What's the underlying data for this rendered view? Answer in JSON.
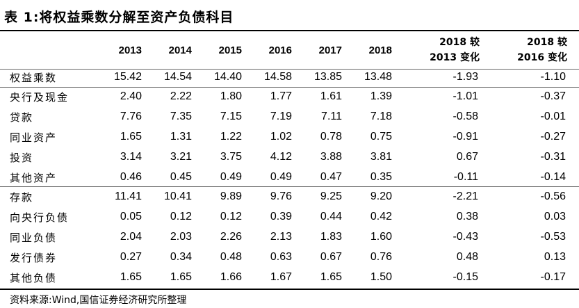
{
  "title": "表 1:将权益乘数分解至资产负债科目",
  "headers": {
    "years": [
      "2013",
      "2014",
      "2015",
      "2016",
      "2017",
      "2018"
    ],
    "change1_line1": "2018 较",
    "change1_line2": "2013 变化",
    "change2_line1": "2018 较",
    "change2_line2": "2016 变化"
  },
  "rows": [
    {
      "label": "权益乘数",
      "values": [
        "15.42",
        "14.54",
        "14.40",
        "14.58",
        "13.85",
        "13.48",
        "-1.93",
        "-1.10"
      ]
    },
    {
      "label": "央行及现金",
      "values": [
        "2.40",
        "2.22",
        "1.80",
        "1.77",
        "1.61",
        "1.39",
        "-1.01",
        "-0.37"
      ]
    },
    {
      "label": "贷款",
      "values": [
        "7.76",
        "7.35",
        "7.15",
        "7.19",
        "7.11",
        "7.18",
        "-0.58",
        "-0.01"
      ]
    },
    {
      "label": "同业资产",
      "values": [
        "1.65",
        "1.31",
        "1.22",
        "1.02",
        "0.78",
        "0.75",
        "-0.91",
        "-0.27"
      ]
    },
    {
      "label": "投资",
      "values": [
        "3.14",
        "3.21",
        "3.75",
        "4.12",
        "3.88",
        "3.81",
        "0.67",
        "-0.31"
      ]
    },
    {
      "label": "其他资产",
      "values": [
        "0.46",
        "0.45",
        "0.49",
        "0.49",
        "0.47",
        "0.35",
        "-0.11",
        "-0.14"
      ]
    },
    {
      "label": "存款",
      "values": [
        "11.41",
        "10.41",
        "9.89",
        "9.76",
        "9.25",
        "9.20",
        "-2.21",
        "-0.56"
      ]
    },
    {
      "label": "向央行负债",
      "values": [
        "0.05",
        "0.12",
        "0.12",
        "0.39",
        "0.44",
        "0.42",
        "0.38",
        "0.03"
      ]
    },
    {
      "label": "同业负债",
      "values": [
        "2.04",
        "2.03",
        "2.26",
        "2.13",
        "1.83",
        "1.60",
        "-0.43",
        "-0.53"
      ]
    },
    {
      "label": "发行债券",
      "values": [
        "0.27",
        "0.34",
        "0.48",
        "0.63",
        "0.67",
        "0.76",
        "0.48",
        "0.13"
      ]
    },
    {
      "label": "其他负债",
      "values": [
        "1.65",
        "1.65",
        "1.66",
        "1.67",
        "1.65",
        "1.50",
        "-0.15",
        "-0.17"
      ]
    }
  ],
  "source": "资料来源:Wind,国信证券经济研究所整理"
}
